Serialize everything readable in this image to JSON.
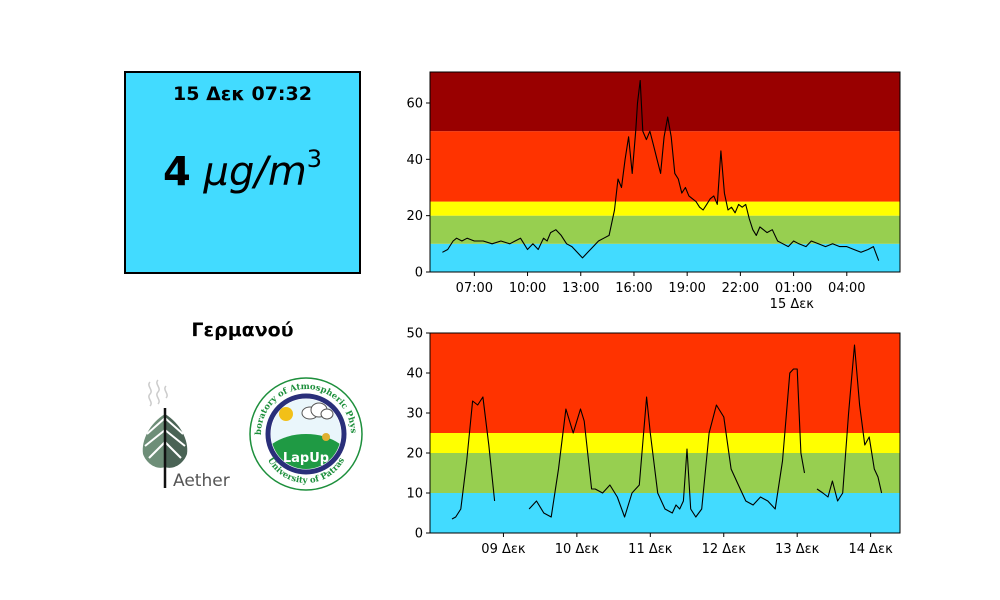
{
  "reading": {
    "timestamp": "15 Δεκ 07:32",
    "value": "4",
    "unit": "μg/m",
    "unit_exp": "3",
    "background": "#42dbff"
  },
  "station": {
    "name": "Γερμανού"
  },
  "logos": {
    "aether": {
      "text": "Aether",
      "icon": "leaf-icon"
    },
    "lapup": {
      "ring_text": "Laboratory of Atmospheric Physics",
      "bottom_text": "University of Patras",
      "label": "LapUp"
    }
  },
  "band_colors": {
    "good": "#42dbff",
    "fair": "#97cf50",
    "moderate": "#ffff00",
    "poor": "#ff3300",
    "very_poor": "#990000"
  },
  "chart_data": [
    {
      "type": "line",
      "title": "",
      "xlabel": "",
      "ylabel": "",
      "x_unit": "hour of 14–15 Δεκ",
      "xlim": [
        4.5,
        31.0
      ],
      "ylim": [
        0,
        71
      ],
      "yticks": [
        0,
        20,
        40,
        60
      ],
      "xticks": [
        {
          "x": 7,
          "label": "07:00"
        },
        {
          "x": 10,
          "label": "10:00"
        },
        {
          "x": 13,
          "label": "13:00"
        },
        {
          "x": 16,
          "label": "16:00"
        },
        {
          "x": 19,
          "label": "19:00"
        },
        {
          "x": 22,
          "label": "22:00"
        },
        {
          "x": 25,
          "label": "01:00"
        },
        {
          "x": 28,
          "label": "04:00"
        }
      ],
      "xtick_sublabel": {
        "x": 24.9,
        "label": "15 Δεκ"
      },
      "bands": [
        {
          "from": 0,
          "to": 10,
          "level": "good"
        },
        {
          "from": 10,
          "to": 20,
          "level": "fair"
        },
        {
          "from": 20,
          "to": 25,
          "level": "moderate"
        },
        {
          "from": 25,
          "to": 50,
          "level": "poor"
        },
        {
          "from": 50,
          "to": 71,
          "level": "very_poor"
        }
      ],
      "series": [
        {
          "x": [
            5.2,
            5.5,
            5.8,
            6.0,
            6.3,
            6.6,
            7.0,
            7.5,
            8.0,
            8.5,
            9.0,
            9.3,
            9.6,
            9.8,
            10.0,
            10.3,
            10.6,
            10.9,
            11.1,
            11.3,
            11.6,
            11.9,
            12.2,
            12.5,
            12.8,
            13.1,
            13.4,
            13.7,
            14.0,
            14.3,
            14.6,
            14.9,
            15.1,
            15.3,
            15.5,
            15.7,
            15.9,
            16.1,
            16.2,
            16.35,
            16.5,
            16.7,
            16.9,
            17.1,
            17.3,
            17.5,
            17.7,
            17.9,
            18.1,
            18.3,
            18.5,
            18.7,
            18.9,
            19.1,
            19.3,
            19.5,
            19.7,
            19.9,
            20.1,
            20.3,
            20.5,
            20.7,
            20.9,
            21.1,
            21.3,
            21.5,
            21.7,
            21.9,
            22.1,
            22.3,
            22.5,
            22.7,
            22.9,
            23.1,
            23.3,
            23.5,
            23.8,
            24.1,
            24.4,
            24.7,
            25.0,
            25.3,
            25.7,
            26.0,
            26.4,
            26.8,
            27.2,
            27.6,
            28.0,
            28.4,
            28.8,
            29.2,
            29.5,
            29.8
          ],
          "y": [
            7,
            8,
            11,
            12,
            11,
            12,
            11,
            11,
            10,
            11,
            10,
            11,
            12,
            10,
            8,
            10,
            8,
            12,
            11,
            14,
            15,
            13,
            10,
            9,
            7,
            5,
            7,
            9,
            11,
            12,
            13,
            22,
            33,
            30,
            40,
            48,
            35,
            50,
            60,
            68,
            50,
            47,
            50,
            45,
            40,
            35,
            48,
            55,
            48,
            35,
            33,
            28,
            30,
            27,
            26,
            25,
            23,
            22,
            24,
            26,
            27,
            24,
            43,
            28,
            22,
            23,
            21,
            24,
            23,
            24,
            19,
            15,
            13,
            16,
            15,
            14,
            15,
            11,
            10,
            9,
            11,
            10,
            9,
            11,
            10,
            9,
            10,
            9,
            9,
            8,
            7,
            8,
            9,
            4
          ]
        }
      ]
    },
    {
      "type": "line",
      "title": "",
      "xlabel": "",
      "ylabel": "",
      "x_unit": "day of Δεκ",
      "xlim": [
        8.0,
        14.4
      ],
      "ylim": [
        0,
        50
      ],
      "yticks": [
        0,
        10,
        20,
        30,
        40,
        50
      ],
      "xticks": [
        {
          "x": 9,
          "label": "09 Δεκ"
        },
        {
          "x": 10,
          "label": "10 Δεκ"
        },
        {
          "x": 11,
          "label": "11 Δεκ"
        },
        {
          "x": 12,
          "label": "12 Δεκ"
        },
        {
          "x": 13,
          "label": "13 Δεκ"
        },
        {
          "x": 14,
          "label": "14 Δεκ"
        }
      ],
      "bands": [
        {
          "from": 0,
          "to": 10,
          "level": "good"
        },
        {
          "from": 10,
          "to": 20,
          "level": "fair"
        },
        {
          "from": 20,
          "to": 25,
          "level": "moderate"
        },
        {
          "from": 25,
          "to": 50,
          "level": "poor"
        }
      ],
      "series": [
        {
          "segments": [
            {
              "x": [
                8.3,
                8.35,
                8.42,
                8.5,
                8.58,
                8.65,
                8.72,
                8.8,
                8.88
              ],
              "y": [
                3.5,
                4,
                6,
                18,
                33,
                32,
                34,
                22,
                8
              ]
            },
            {
              "x": [
                9.35,
                9.45,
                9.55,
                9.65,
                9.75,
                9.85,
                9.95,
                10.05,
                10.1,
                10.2,
                10.25,
                10.35,
                10.45,
                10.55,
                10.65,
                10.75,
                10.85,
                10.95,
                11.0,
                11.1,
                11.2,
                11.3,
                11.35,
                11.4,
                11.45,
                11.5,
                11.55,
                11.62,
                11.7,
                11.8,
                11.9,
                12.0,
                12.1,
                12.2,
                12.3,
                12.4,
                12.5,
                12.6,
                12.7,
                12.8,
                12.9,
                12.95,
                13.0,
                13.05,
                13.1
              ],
              "y": [
                6,
                8,
                5,
                4,
                16,
                31,
                25,
                31,
                28,
                11,
                11,
                10,
                12,
                9,
                4,
                10,
                12,
                34,
                25,
                10,
                6,
                5,
                7,
                6,
                8,
                21,
                6,
                4,
                6,
                25,
                32,
                29,
                16,
                12,
                8,
                7,
                9,
                8,
                6,
                18,
                40,
                41,
                41,
                20,
                15
              ]
            },
            {
              "x": [
                13.27,
                13.35,
                13.42,
                13.48,
                13.55,
                13.62,
                13.7,
                13.78,
                13.85,
                13.92,
                13.98,
                14.05,
                14.1,
                14.15
              ],
              "y": [
                11,
                10,
                9,
                13,
                8,
                10,
                30,
                47,
                32,
                22,
                24,
                16,
                14,
                10
              ]
            }
          ]
        }
      ]
    }
  ]
}
